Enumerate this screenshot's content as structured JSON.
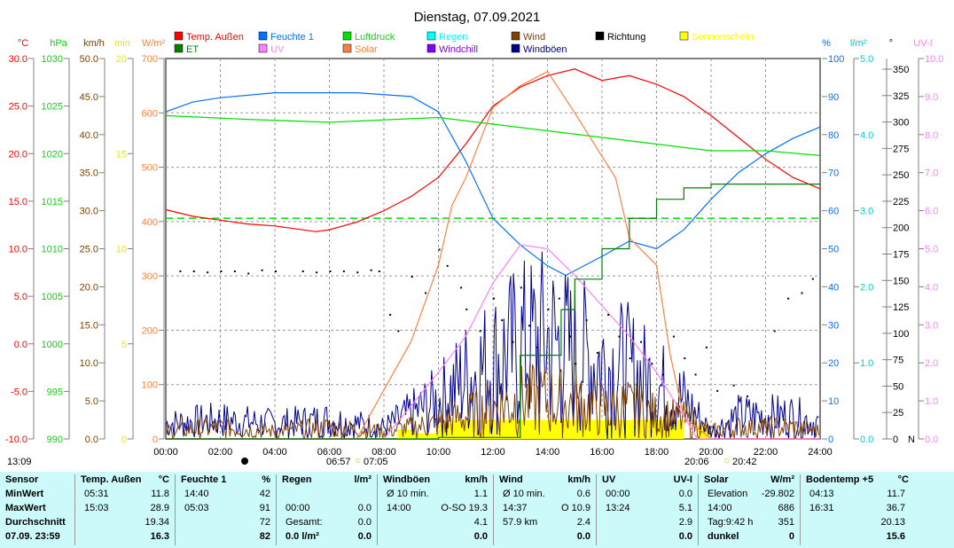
{
  "chart_data": {
    "type": "line",
    "title": "Dienstag, 07.09.2021",
    "x_unit": "hour",
    "xlim": [
      0,
      24
    ],
    "x_ticks": [
      "00:00",
      "02:00",
      "04:00",
      "06:00",
      "08:00",
      "10:00",
      "12:00",
      "14:00",
      "16:00",
      "18:00",
      "20:00",
      "22:00",
      "24:00"
    ],
    "legend": [
      {
        "name": "Temp. Außen",
        "color": "#ff0000"
      },
      {
        "name": "Feuchte 1",
        "color": "#0070ff"
      },
      {
        "name": "Luftdruck",
        "color": "#00e000"
      },
      {
        "name": "Regen",
        "color": "#00ffff"
      },
      {
        "name": "Wind",
        "color": "#804000"
      },
      {
        "name": "Richtung",
        "color": "#000000"
      },
      {
        "name": "Sonnenschein",
        "color": "#ffff00"
      },
      {
        "name": "ET",
        "color": "#008000"
      },
      {
        "name": "UV",
        "color": "#ff80ff"
      },
      {
        "name": "Solar",
        "color": "#ff8040"
      },
      {
        "name": "Windchill",
        "color": "#8000ff"
      },
      {
        "name": "Windböen",
        "color": "#000090"
      }
    ],
    "axes_left": [
      {
        "unit": "°C",
        "color": "#ff0000",
        "ticks": [
          "30.0",
          "25.0",
          "20.0",
          "15.0",
          "10.0",
          "5.0",
          "0.0",
          "-5.0",
          "-10.0"
        ],
        "range": [
          -10,
          30
        ]
      },
      {
        "unit": "hPa",
        "color": "#00e000",
        "ticks": [
          "1030",
          "1025",
          "1020",
          "1015",
          "1010",
          "1005",
          "1000",
          "995",
          "990"
        ],
        "range": [
          990,
          1030
        ]
      },
      {
        "unit": "km/h",
        "color": "#804000",
        "ticks": [
          "50.0",
          "45.0",
          "40.0",
          "35.0",
          "30.0",
          "25.0",
          "20.0",
          "15.0",
          "10.0",
          "5.0",
          "0.0"
        ],
        "range": [
          0,
          50
        ]
      },
      {
        "unit": "min",
        "color": "#e8e800",
        "ticks": [
          "20",
          "15",
          "10",
          "5",
          "0"
        ],
        "range": [
          0,
          20
        ]
      },
      {
        "unit": "W/m²",
        "color": "#ff8040",
        "ticks": [
          "700",
          "600",
          "500",
          "400",
          "300",
          "200",
          "100",
          "0"
        ],
        "range": [
          0,
          700
        ]
      }
    ],
    "axes_right": [
      {
        "unit": "%",
        "color": "#0070ff",
        "ticks": [
          "100",
          "90",
          "80",
          "70",
          "60",
          "50",
          "40",
          "30",
          "20",
          "10",
          "0"
        ],
        "range": [
          0,
          100
        ]
      },
      {
        "unit": "l/m²",
        "color": "#00d0d0",
        "ticks": [
          "5.0",
          "4.0",
          "3.0",
          "2.0",
          "1.0",
          "0.0"
        ],
        "range": [
          0,
          5
        ]
      },
      {
        "unit": "°",
        "color": "#000000",
        "ticks": [
          "350",
          "325",
          "300",
          "275",
          "250",
          "225",
          "200",
          "175",
          "150",
          "125",
          "100",
          "75",
          "50",
          "25",
          "0"
        ],
        "range": [
          0,
          350
        ],
        "bottom_label": "N"
      },
      {
        "unit": "UV-I",
        "color": "#ff80ff",
        "ticks": [
          "10.0",
          "9.0",
          "8.0",
          "7.0",
          "6.0",
          "5.0",
          "4.0",
          "3.0",
          "2.0",
          "1.0",
          "0.0"
        ],
        "range": [
          0,
          10
        ]
      }
    ],
    "series": [
      {
        "name": "Temp. Außen",
        "axis": "°C",
        "x": [
          0,
          1,
          2,
          3,
          4,
          5.5,
          6,
          7,
          8,
          9,
          10,
          11,
          12,
          13,
          14,
          15,
          16,
          17,
          18,
          19,
          20,
          21,
          22,
          23,
          24
        ],
        "y": [
          14.1,
          13.4,
          13.0,
          12.6,
          12.4,
          11.8,
          12.0,
          12.8,
          14.0,
          15.5,
          17.5,
          21,
          25,
          27,
          28.2,
          28.9,
          27.7,
          28.2,
          27.3,
          26,
          24,
          21.7,
          19.4,
          17.5,
          16.3
        ]
      },
      {
        "name": "Feuchte 1",
        "axis": "%",
        "x": [
          0,
          1,
          2,
          4,
          7,
          9,
          10,
          11,
          12,
          13,
          14,
          14.67,
          16,
          17,
          18,
          19,
          20,
          21,
          22,
          23,
          24
        ],
        "y": [
          86,
          88.6,
          89.7,
          91,
          91,
          90,
          86,
          73,
          58,
          51,
          45.5,
          43,
          48,
          52,
          50,
          55,
          63,
          70,
          75,
          79,
          82
        ]
      },
      {
        "name": "Luftdruck",
        "axis": "hPa",
        "x": [
          0,
          3,
          6,
          10,
          12,
          14,
          16,
          18,
          20,
          22,
          24
        ],
        "y": [
          1024.0,
          1023.6,
          1023.3,
          1023.8,
          1023.1,
          1022.4,
          1021.7,
          1021.0,
          1020.3,
          1020.3,
          1019.8
        ]
      },
      {
        "name": "Solar",
        "axis": "W/m²",
        "x": [
          0,
          7,
          8,
          9,
          10,
          10.5,
          11,
          12,
          13,
          14,
          15,
          16,
          16.5,
          17,
          18,
          18.5,
          19,
          20,
          24
        ],
        "y": [
          0,
          0,
          90,
          180,
          320,
          430,
          480,
          610,
          650,
          676,
          600,
          520,
          480,
          370,
          320,
          155,
          40,
          0,
          0
        ]
      },
      {
        "name": "UV",
        "axis": "UV-I",
        "x": [
          0,
          8,
          10,
          11,
          12,
          13,
          14,
          15,
          16,
          17,
          18,
          19,
          19.5,
          24
        ],
        "y": [
          0,
          0,
          1.75,
          2.7,
          4.1,
          5.1,
          5.0,
          4.3,
          3.5,
          2.7,
          1.75,
          0.6,
          0,
          0
        ]
      },
      {
        "name": "ET",
        "axis": "l/m²",
        "step": true,
        "x": [
          0,
          10,
          13,
          14.5,
          15,
          16,
          17,
          18,
          19,
          20,
          24
        ],
        "y": [
          0,
          0.02,
          1.1,
          1.7,
          2.1,
          2.5,
          2.9,
          3.15,
          3.3,
          3.35,
          3.35
        ]
      },
      {
        "name": "Wind",
        "axis": "km/h",
        "x": [
          0,
          2,
          4,
          6,
          8,
          10,
          11,
          12,
          13,
          14,
          15,
          16,
          17,
          18,
          19,
          20,
          21,
          22,
          23,
          24
        ],
        "y": [
          1,
          1.5,
          1,
          1.5,
          1,
          2,
          3,
          4,
          5,
          5,
          4.5,
          4,
          4,
          3,
          2.5,
          1,
          1.5,
          1.5,
          1.5,
          1
        ]
      },
      {
        "name": "Windböen",
        "axis": "km/h",
        "x": [
          0,
          2,
          4,
          6,
          8,
          10,
          11,
          12,
          13,
          14,
          15,
          16,
          17,
          18,
          19,
          20,
          21,
          22,
          23,
          24
        ],
        "y": [
          2,
          2.5,
          2,
          2.5,
          1.5,
          5,
          8,
          10,
          12,
          13,
          11,
          10,
          9,
          7,
          5,
          1,
          3,
          3,
          3,
          2
        ]
      },
      {
        "name": "Richtung",
        "axis": "°",
        "type": "scatter",
        "x": [
          0.5,
          1,
          1.5,
          2,
          2.5,
          3,
          3.5,
          4,
          5,
          5.5,
          6,
          6.5,
          7,
          7.5,
          7.8,
          8.2,
          8.5,
          9,
          9.5,
          10,
          10.3,
          10.8,
          11,
          11.5,
          12,
          12.3,
          12.7,
          13,
          13.3,
          13.6,
          14,
          14.4,
          14.8,
          15,
          15.4,
          15.8,
          16.2,
          16.6,
          17,
          17.4,
          17.8,
          18.2,
          18.6,
          19,
          19.4,
          19.8,
          20.2,
          20.8,
          21.3,
          22.3,
          22.8,
          23.3,
          23.7
        ],
        "y": [
          155,
          155,
          154,
          155,
          155,
          153,
          156,
          155,
          155,
          154,
          155,
          155,
          154,
          156,
          155,
          115,
          100,
          150,
          135,
          175,
          160,
          140,
          120,
          100,
          130,
          110,
          90,
          140,
          105,
          85,
          120,
          130,
          95,
          70,
          110,
          80,
          115,
          95,
          75,
          90,
          70,
          60,
          95,
          75,
          60,
          85,
          45,
          50,
          40,
          100,
          130,
          135,
          148
        ]
      },
      {
        "name": "Sonnenschein",
        "axis": "min",
        "type": "bar",
        "x": [
          8.5,
          9,
          9.5,
          10,
          10.5,
          11,
          11.5,
          12,
          12.5,
          13,
          13.5,
          14,
          14.5,
          15,
          15.5,
          16,
          16.5,
          17,
          17.5,
          18,
          18.5,
          19.5
        ],
        "y": [
          0.5,
          0.3,
          0.3,
          0.8,
          1,
          1,
          1,
          1,
          1,
          1,
          1,
          1,
          1,
          1,
          1,
          1,
          1,
          1,
          1,
          1,
          1,
          0.7
        ]
      }
    ],
    "reference_line": {
      "axis": "l/m²",
      "value": 2.9,
      "color": "#00e000",
      "style": "dashed"
    },
    "annotations": {
      "left_time": "13:09",
      "sunrise": "06:57",
      "sunrise2": "07:05",
      "sunset": "20:06",
      "sunset2": "20:42"
    }
  },
  "table": {
    "columns": [
      {
        "header": [
          "Sensor",
          ""
        ],
        "rows": [
          [
            "MinWert",
            ""
          ],
          [
            "MaxWert",
            ""
          ],
          [
            "Durchschnitt",
            ""
          ],
          [
            "07.09. 23:59",
            ""
          ]
        ]
      },
      {
        "header": [
          "Temp. Außen",
          "°C"
        ],
        "rows": [
          [
            "05:31",
            "11.8"
          ],
          [
            "15:03",
            "28.9"
          ],
          [
            "",
            "19.34"
          ],
          [
            "",
            "16.3"
          ]
        ]
      },
      {
        "header": [
          "Feuchte 1",
          "%"
        ],
        "rows": [
          [
            "14:40",
            "42"
          ],
          [
            "05:03",
            "91"
          ],
          [
            "",
            "72"
          ],
          [
            "",
            "82"
          ]
        ]
      },
      {
        "header": [
          "Regen",
          "l/m²"
        ],
        "rows": [
          [
            "",
            ""
          ],
          [
            "00:00",
            "0.0"
          ],
          [
            "Gesamt:",
            "0.0"
          ],
          [
            "0.0 l/m²",
            "0.0"
          ]
        ]
      },
      {
        "header": [
          "Windböen",
          "km/h"
        ],
        "rows": [
          [
            "Ø 10 min.",
            "1.1"
          ],
          [
            "14:00",
            "O-SO 19.3"
          ],
          [
            "",
            "4.1"
          ],
          [
            "",
            "0.0"
          ]
        ]
      },
      {
        "header": [
          "Wind",
          "km/h"
        ],
        "rows": [
          [
            "Ø 10 min.",
            "0.6"
          ],
          [
            "14:37",
            "O 10.9"
          ],
          [
            "57.9 km",
            "2.4"
          ],
          [
            "",
            "0.0"
          ]
        ]
      },
      {
        "header": [
          "UV",
          "UV-I"
        ],
        "rows": [
          [
            "00:00",
            "0.0"
          ],
          [
            "13:24",
            "5.1"
          ],
          [
            "",
            "2.9"
          ],
          [
            "",
            "0.0"
          ]
        ]
      },
      {
        "header": [
          "Solar",
          "W/m²"
        ],
        "rows": [
          [
            "Elevation",
            "-29.802"
          ],
          [
            "14:00",
            "686"
          ],
          [
            "Tag:9:42 h",
            "351"
          ],
          [
            "dunkel",
            "0"
          ]
        ]
      },
      {
        "header": [
          "Bodentemp +5",
          "°C"
        ],
        "rows": [
          [
            "04:13",
            "11.7"
          ],
          [
            "16:31",
            "36.7"
          ],
          [
            "",
            "20.13"
          ],
          [
            "",
            "15.6"
          ]
        ]
      }
    ]
  }
}
